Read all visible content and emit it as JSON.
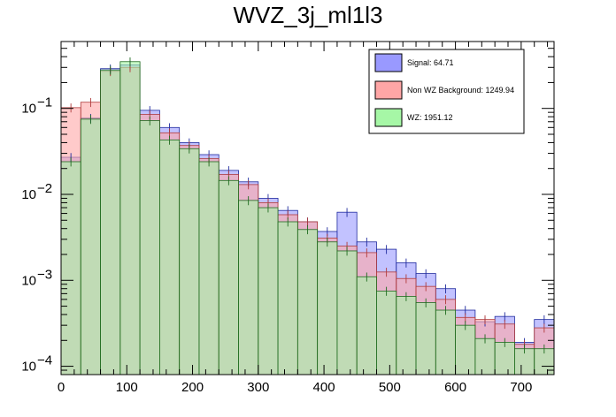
{
  "chart_data": {
    "type": "histogram",
    "title": "WVZ_3j_ml1l3",
    "xlabel": "",
    "ylabel": "",
    "xlim": [
      0,
      750
    ],
    "ylim": [
      8e-05,
      0.6
    ],
    "yscale": "log",
    "bin_width": 30,
    "x_ticks": [
      "0",
      "100",
      "200",
      "300",
      "400",
      "500",
      "600",
      "700"
    ],
    "x_tick_values": [
      0,
      100,
      200,
      300,
      400,
      500,
      600,
      700
    ],
    "y_tick_values": [
      0.0001,
      0.001,
      0.01,
      0.1
    ],
    "y_tick_labels": [
      {
        "base": "10",
        "exp": "−4"
      },
      {
        "base": "10",
        "exp": "−3"
      },
      {
        "base": "10",
        "exp": "−2"
      },
      {
        "base": "10",
        "exp": "−1"
      }
    ],
    "legend_position": "top-right",
    "series": [
      {
        "name": "Signal",
        "legend_label": "Signal: 64.71",
        "fill": "#9999ff",
        "line": "#1f2a9e",
        "values": [
          0.027,
          0.077,
          0.29,
          0.32,
          0.095,
          0.06,
          0.04,
          0.029,
          0.019,
          0.014,
          0.009,
          0.0065,
          0.0048,
          0.0037,
          0.0062,
          0.0028,
          0.0023,
          0.0016,
          0.0012,
          0.0008,
          0.00045,
          0.00033,
          0.00038,
          0.00019,
          0.00035
        ]
      },
      {
        "name": "Non WZ Background",
        "legend_label": "Non WZ Background: 1249.94",
        "fill": "#ffa6a6",
        "line": "#b03a3a",
        "values": [
          0.102,
          0.118,
          0.27,
          0.3,
          0.085,
          0.052,
          0.037,
          0.026,
          0.017,
          0.013,
          0.008,
          0.0058,
          0.0048,
          0.0031,
          0.0025,
          0.0021,
          0.00125,
          0.00105,
          0.00085,
          0.0006,
          0.00037,
          0.00035,
          0.00031,
          0.00018,
          0.00028
        ]
      },
      {
        "name": "WZ",
        "legend_label": "WZ: 1951.12",
        "fill": "#a6f7a6",
        "line": "#1f6b1f",
        "values": [
          0.024,
          0.075,
          0.28,
          0.35,
          0.072,
          0.043,
          0.034,
          0.024,
          0.0145,
          0.0085,
          0.007,
          0.0048,
          0.0039,
          0.0028,
          0.0022,
          0.0011,
          0.00075,
          0.00065,
          0.00055,
          0.00045,
          0.0003,
          0.00021,
          0.00019,
          0.00016,
          0.00016
        ]
      }
    ]
  }
}
